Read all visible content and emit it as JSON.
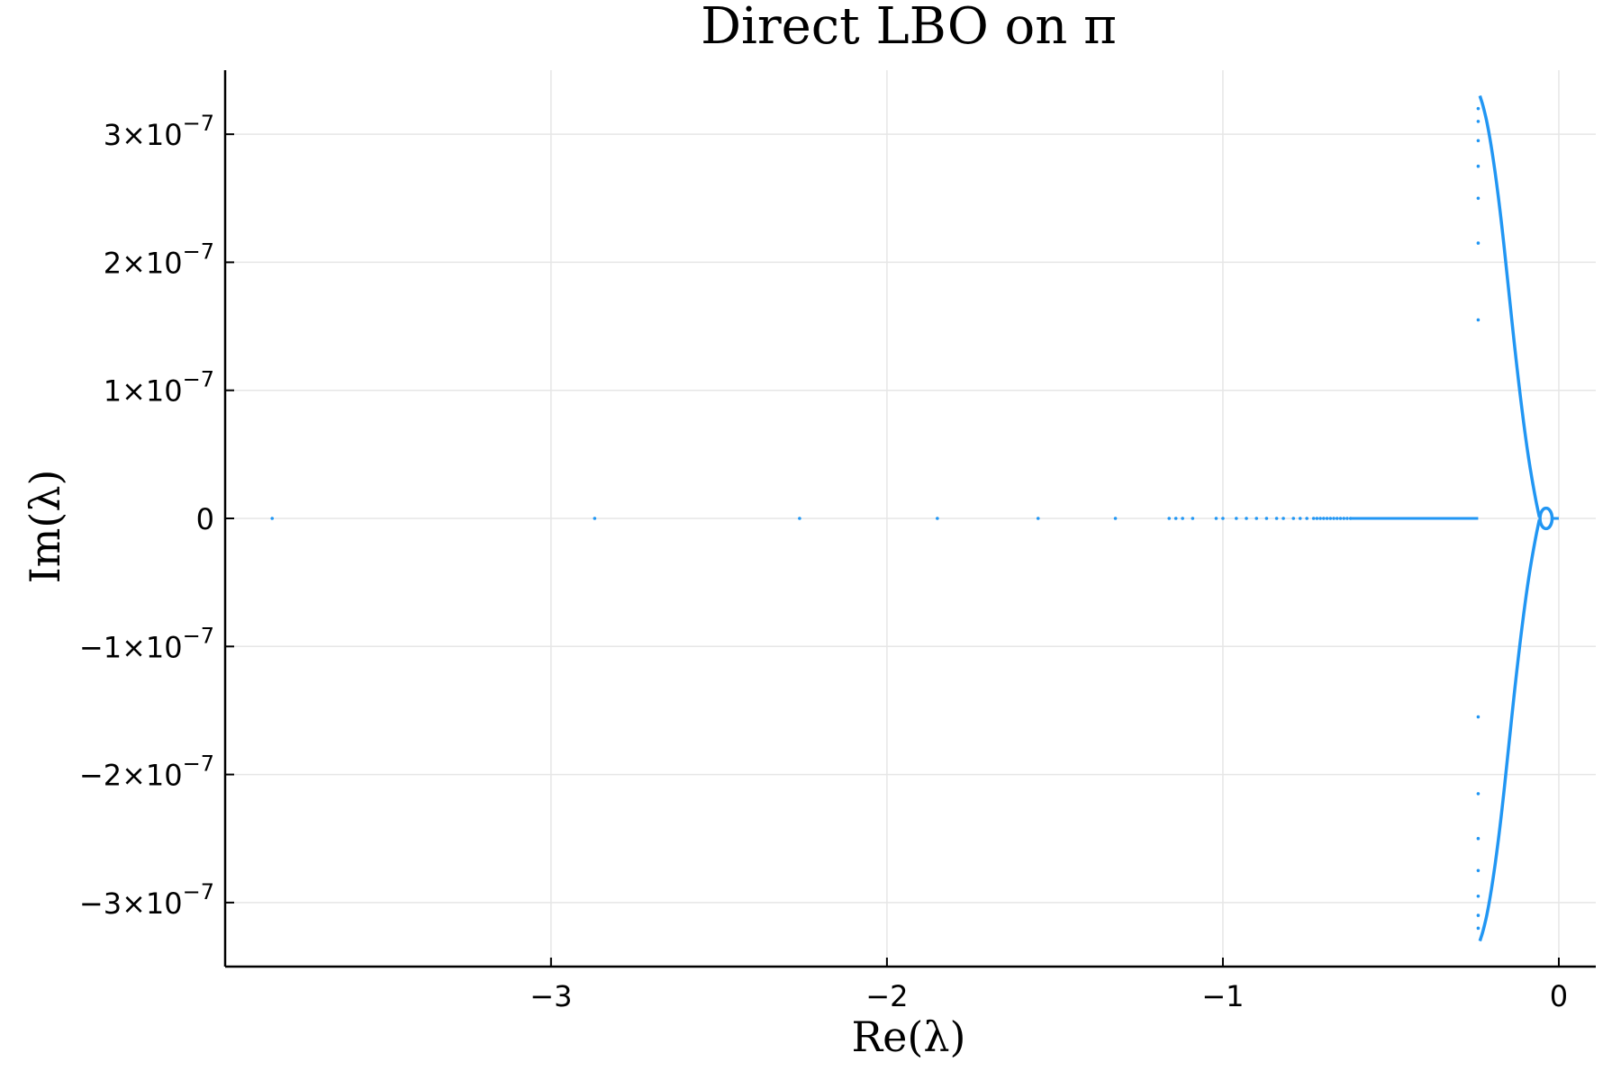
{
  "chart_data": {
    "type": "scatter",
    "title": "Direct LBO on π",
    "xlabel": "Re(λ)",
    "ylabel": "Im(λ)",
    "xlim": [
      -3.97,
      0.11
    ],
    "ylim": [
      -3.5e-07,
      3.5e-07
    ],
    "grid": true,
    "color": "#2196f3",
    "xticks": [
      {
        "value": -3,
        "label": "−3"
      },
      {
        "value": -2,
        "label": "−2"
      },
      {
        "value": -1,
        "label": "−1"
      },
      {
        "value": 0,
        "label": "0"
      }
    ],
    "yticks": [
      {
        "value": 3e-07,
        "mant": "3×10",
        "exp": "−7"
      },
      {
        "value": 2e-07,
        "mant": "2×10",
        "exp": "−7"
      },
      {
        "value": 1e-07,
        "mant": "1×10",
        "exp": "−7"
      },
      {
        "value": 0,
        "mant": "0",
        "exp": ""
      },
      {
        "value": -1e-07,
        "mant": "−1×10",
        "exp": "−7"
      },
      {
        "value": -2e-07,
        "mant": "−2×10",
        "exp": "−7"
      },
      {
        "value": -3e-07,
        "mant": "−3×10",
        "exp": "−7"
      }
    ],
    "real_axis_points": [
      -3.83,
      -2.87,
      -2.26,
      -1.85,
      -1.55,
      -1.32,
      -1.16,
      -1.14,
      -1.12,
      -1.09,
      -1.02,
      -1.0,
      -0.96,
      -0.93,
      -0.9,
      -0.87,
      -0.84,
      -0.82,
      -0.79,
      -0.77,
      -0.75,
      -0.73,
      -0.72,
      -0.71,
      -0.7,
      -0.69,
      -0.68,
      -0.67,
      -0.66,
      -0.65,
      -0.64,
      -0.63,
      -0.62
    ],
    "real_axis_dense_segment": [
      -0.62,
      -0.24
    ],
    "vertical_points": {
      "x": -0.24,
      "y": [
        3.2e-07,
        3.1e-07,
        2.95e-07,
        2.75e-07,
        2.5e-07,
        2.15e-07,
        1.55e-07,
        -1.55e-07,
        -2.15e-07,
        -2.5e-07,
        -2.75e-07,
        -2.95e-07,
        -3.1e-07,
        -3.2e-07
      ]
    },
    "upper_curve": [
      {
        "x": -0.235,
        "y": 3.3e-07
      },
      {
        "x": -0.225,
        "y": 3.22e-07
      },
      {
        "x": -0.21,
        "y": 3.05e-07
      },
      {
        "x": -0.19,
        "y": 2.72e-07
      },
      {
        "x": -0.17,
        "y": 2.3e-07
      },
      {
        "x": -0.15,
        "y": 1.8e-07
      },
      {
        "x": -0.13,
        "y": 1.3e-07
      },
      {
        "x": -0.11,
        "y": 8.5e-08
      },
      {
        "x": -0.09,
        "y": 4.6e-08
      },
      {
        "x": -0.07,
        "y": 1.6e-08
      },
      {
        "x": -0.058,
        "y": 1e-09
      }
    ],
    "lower_curve": [
      {
        "x": -0.235,
        "y": -3.3e-07
      },
      {
        "x": -0.225,
        "y": -3.22e-07
      },
      {
        "x": -0.21,
        "y": -3.05e-07
      },
      {
        "x": -0.19,
        "y": -2.72e-07
      },
      {
        "x": -0.17,
        "y": -2.3e-07
      },
      {
        "x": -0.15,
        "y": -1.8e-07
      },
      {
        "x": -0.13,
        "y": -1.3e-07
      },
      {
        "x": -0.11,
        "y": -8.5e-08
      },
      {
        "x": -0.09,
        "y": -4.6e-08
      },
      {
        "x": -0.07,
        "y": -1.6e-08
      },
      {
        "x": -0.058,
        "y": -1e-09
      }
    ],
    "small_loop": {
      "cx": -0.038,
      "cy": 0,
      "rx": 0.018,
      "ry": 8e-09
    },
    "right_segment": [
      -0.02,
      0.0
    ]
  }
}
